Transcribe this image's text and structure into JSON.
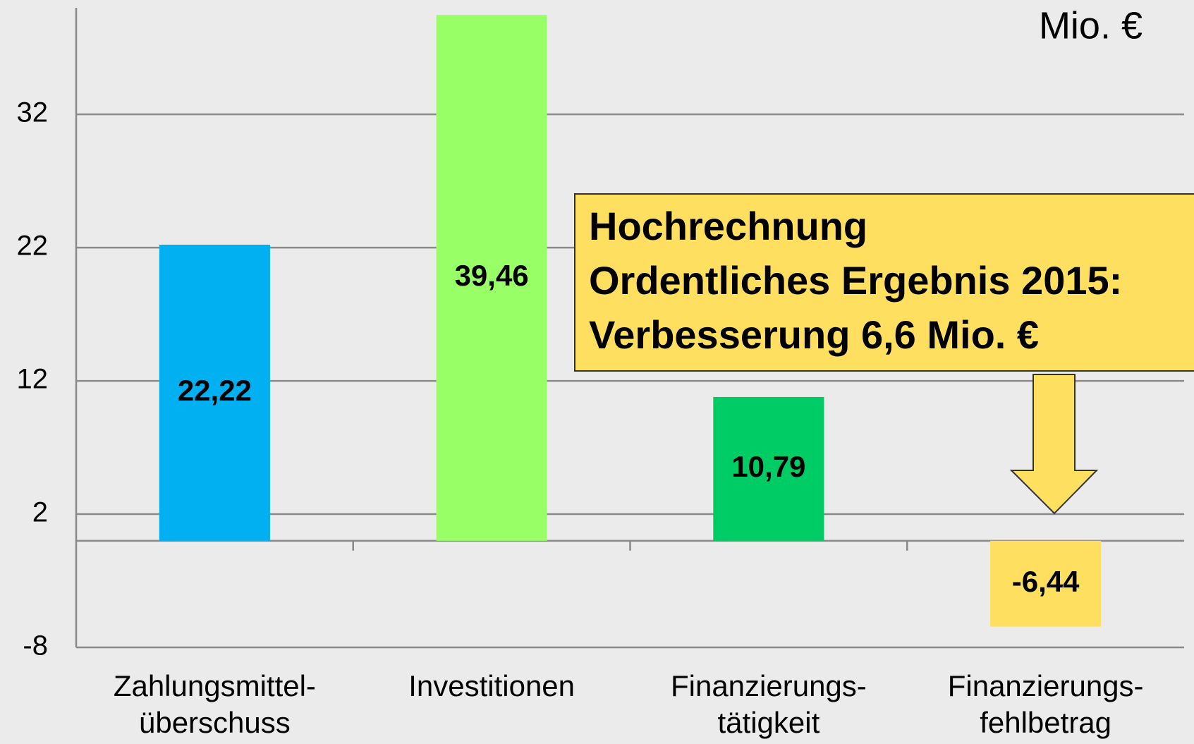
{
  "chart_data": {
    "type": "bar",
    "unit_label": "Mio. €",
    "categories": [
      [
        "Zahlungsmittel-",
        "überschuss"
      ],
      [
        "Investitionen"
      ],
      [
        "Finanzierungs-",
        "tätigkeit"
      ],
      [
        "Finanzierungs-",
        "fehlbetrag"
      ]
    ],
    "values": [
      22.22,
      39.46,
      10.79,
      -6.44
    ],
    "value_labels": [
      "22,22",
      "39,46",
      "10,79",
      "-6,44"
    ],
    "colors": [
      "#00b0f0",
      "#99ff66",
      "#00cc66",
      "#ffdf5f"
    ],
    "ylim": [
      -8,
      40
    ],
    "yticks": [
      -8,
      2,
      12,
      22,
      32
    ],
    "grid": true,
    "annotation": [
      "Hochrechnung",
      "Ordentliches Ergebnis 2015:",
      "Verbesserung 6,6 Mio. €"
    ]
  }
}
